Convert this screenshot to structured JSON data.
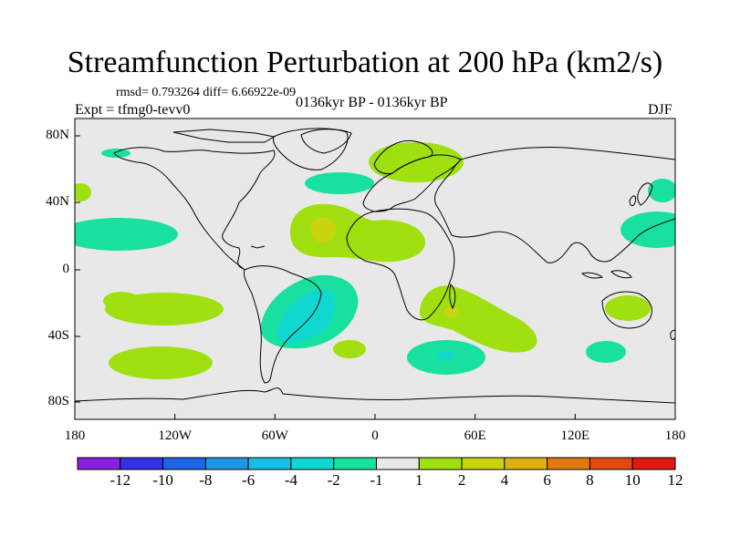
{
  "title": "Streamfunction Perturbation at 200 hPa (km2/s)",
  "stats": "rmsd= 0.793264 diff= 6.66922e-09",
  "experiment": "Expt = tfmg0-tevv0",
  "period": "0136kyr BP - 0136kyr BP",
  "season": "DJF",
  "map": {
    "y_ticks": [
      "80N",
      "40N",
      "0",
      "40S",
      "80S"
    ],
    "x_ticks": [
      "180",
      "120W",
      "60W",
      "0",
      "60E",
      "120E",
      "180"
    ],
    "background_color": "#e8e8e8"
  },
  "colorbar": {
    "labels": [
      "-12",
      "-10",
      "-8",
      "-6",
      "-4",
      "-2",
      "-1",
      "1",
      "2",
      "4",
      "6",
      "8",
      "10",
      "12"
    ],
    "colors": [
      "#8a1fe0",
      "#3232e6",
      "#1e64e6",
      "#1e96e6",
      "#16bee6",
      "#10d8d0",
      "#18e0a0",
      "#e8e8e8",
      "#a0e010",
      "#c8d410",
      "#e0b010",
      "#e07a10",
      "#e04a10",
      "#e01a10"
    ]
  },
  "contours": {
    "positive_1_2": "#a0e010",
    "positive_2_4": "#c8d410",
    "positive_4_6": "#e0b010",
    "negative_1_2": "#18e0a0",
    "negative_2_4": "#10d8d0"
  }
}
